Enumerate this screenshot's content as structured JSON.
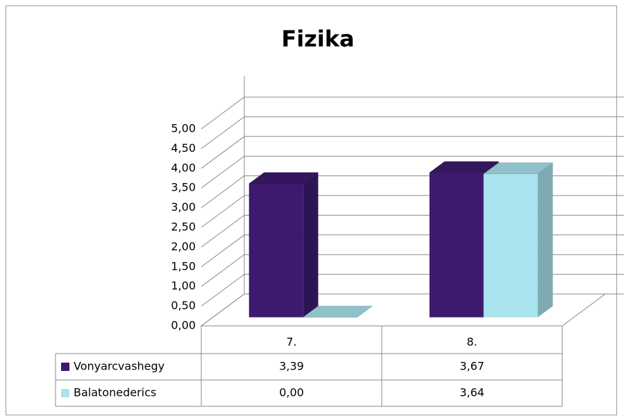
{
  "chart_data": {
    "type": "bar3d",
    "title": "Fizika",
    "categories": [
      "7.",
      "8."
    ],
    "series": [
      {
        "name": "Vonyarcvashegy",
        "color": "#3d1a6e",
        "values": [
          3.39,
          3.67
        ],
        "value_labels": [
          "3,39",
          "3,67"
        ]
      },
      {
        "name": "Balatonederics",
        "color": "#a9e3ee",
        "values": [
          0.0,
          3.64
        ],
        "value_labels": [
          "0,00",
          "3,64"
        ]
      }
    ],
    "ylim": [
      0,
      5
    ],
    "yticks": [
      {
        "value": 0,
        "label": "0,00"
      },
      {
        "value": 0.5,
        "label": "0,50"
      },
      {
        "value": 1,
        "label": "1,00"
      },
      {
        "value": 1.5,
        "label": "1,50"
      },
      {
        "value": 2,
        "label": "2,00"
      },
      {
        "value": 2.5,
        "label": "2,50"
      },
      {
        "value": 3,
        "label": "3,00"
      },
      {
        "value": 3.5,
        "label": "3,50"
      },
      {
        "value": 4,
        "label": "4,00"
      },
      {
        "value": 4.5,
        "label": "4,50"
      },
      {
        "value": 5,
        "label": "5,00"
      }
    ],
    "grid": true,
    "data_table": true
  }
}
